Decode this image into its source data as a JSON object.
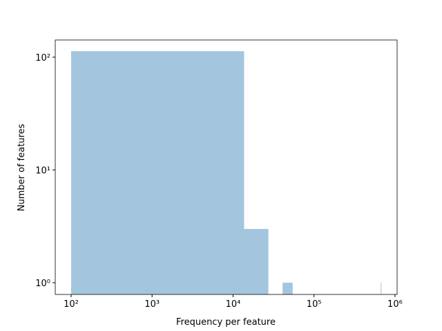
{
  "chart_data": {
    "type": "histogram",
    "xlabel": "Frequency per feature",
    "ylabel": "Number of features",
    "bins": [
      100,
      13700,
      27300,
      40900,
      54500,
      68100,
      81700,
      95300,
      108900,
      122500,
      136100,
      149700,
      163300,
      176900,
      190500,
      204100,
      217700,
      231300,
      244900,
      258500,
      272100,
      285700,
      299300,
      312900,
      326500,
      340100,
      353700,
      367300,
      380900,
      394500,
      408100,
      421700,
      435300,
      448900,
      462500,
      476100,
      489700,
      503300,
      516900,
      530500,
      544100,
      557700,
      571300,
      584900,
      598500,
      612100,
      625700,
      639300,
      652900,
      666500,
      680100
    ],
    "counts": [
      113,
      3,
      0,
      1,
      0,
      0,
      0,
      0,
      0,
      0,
      0,
      0,
      0,
      0,
      0,
      0,
      0,
      0,
      0,
      0,
      0,
      0,
      0,
      0,
      0,
      0,
      0,
      0,
      0,
      0,
      0,
      0,
      0,
      0,
      0,
      0,
      0,
      0,
      0,
      0,
      0,
      0,
      0,
      0,
      0,
      0,
      0,
      0,
      0,
      1
    ],
    "color": "#a3c6de",
    "xscale": "log",
    "yscale": "log",
    "xlim": [
      63.7,
      1062000
    ],
    "ylim": [
      0.787,
      142
    ],
    "xticks": [
      {
        "value": 100,
        "label": "10²"
      },
      {
        "value": 1000,
        "label": "10³"
      },
      {
        "value": 10000,
        "label": "10⁴"
      },
      {
        "value": 100000,
        "label": "10⁵"
      },
      {
        "value": 1000000,
        "label": "10⁶"
      }
    ],
    "yticks": [
      {
        "value": 1,
        "label": "10⁰"
      },
      {
        "value": 10,
        "label": "10¹"
      },
      {
        "value": 100,
        "label": "10²"
      }
    ]
  }
}
